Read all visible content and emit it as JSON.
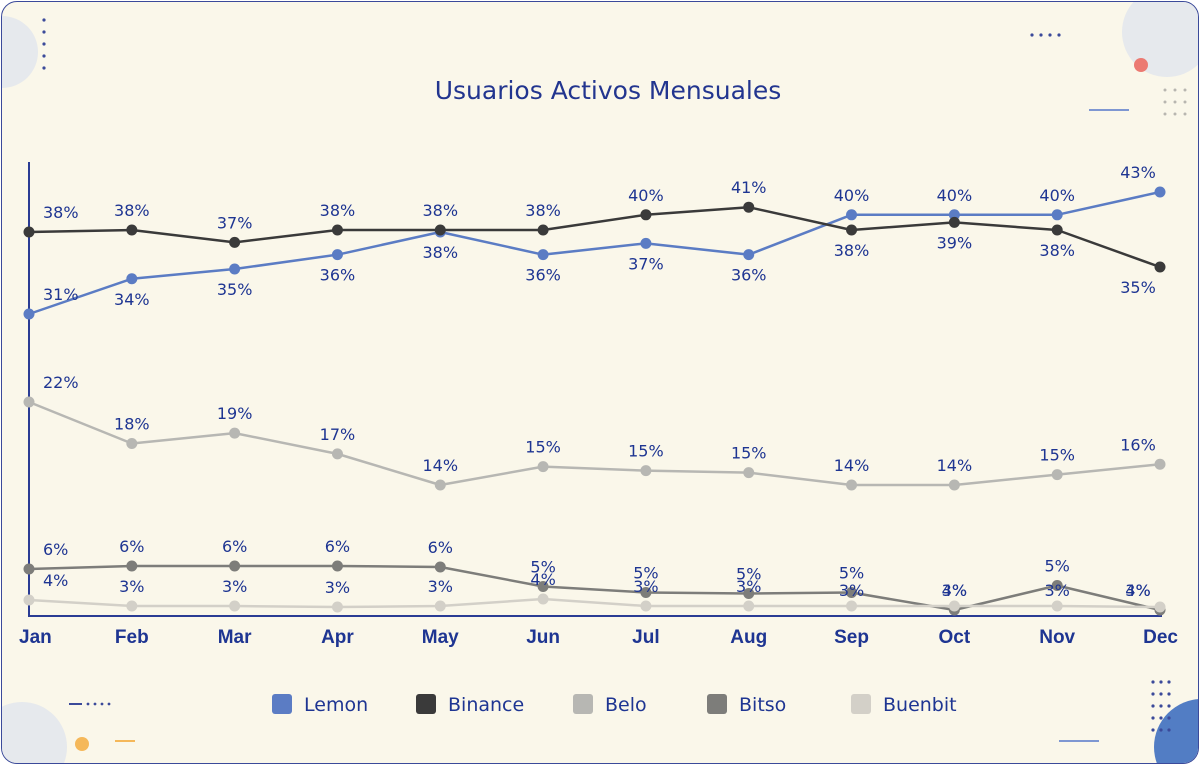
{
  "chart_data": {
    "type": "line",
    "title": "Usuarios Activos Mensuales",
    "xlabel": "",
    "ylabel": "",
    "categories": [
      "Jan",
      "Feb",
      "Mar",
      "Apr",
      "May",
      "Jun",
      "Jul",
      "Aug",
      "Sep",
      "Oct",
      "Nov",
      "Dec"
    ],
    "unit": "%",
    "legend_position": "bottom",
    "grid": false,
    "series": [
      {
        "name": "Lemon",
        "color": "#5b7cc4",
        "values": [
          31,
          34,
          35,
          36,
          38,
          36,
          37,
          36,
          40,
          40,
          40,
          43
        ]
      },
      {
        "name": "Binance",
        "color": "#3a3a3a",
        "values": [
          38,
          38,
          37,
          38,
          38,
          38,
          40,
          41,
          38,
          39,
          38,
          35
        ]
      },
      {
        "name": "Belo",
        "color": "#b7b7b3",
        "values": [
          22,
          18,
          19,
          17,
          14,
          15,
          15,
          15,
          14,
          14,
          15,
          16
        ]
      },
      {
        "name": "Bitso",
        "color": "#7d7d7a",
        "values": [
          6,
          6,
          6,
          6,
          6,
          5,
          5,
          5,
          5,
          4,
          5,
          4
        ]
      },
      {
        "name": "Buenbit",
        "color": "#d3d0c8",
        "values": [
          4,
          3,
          3,
          3,
          3,
          4,
          3,
          3,
          3,
          3,
          3,
          3
        ]
      }
    ]
  }
}
